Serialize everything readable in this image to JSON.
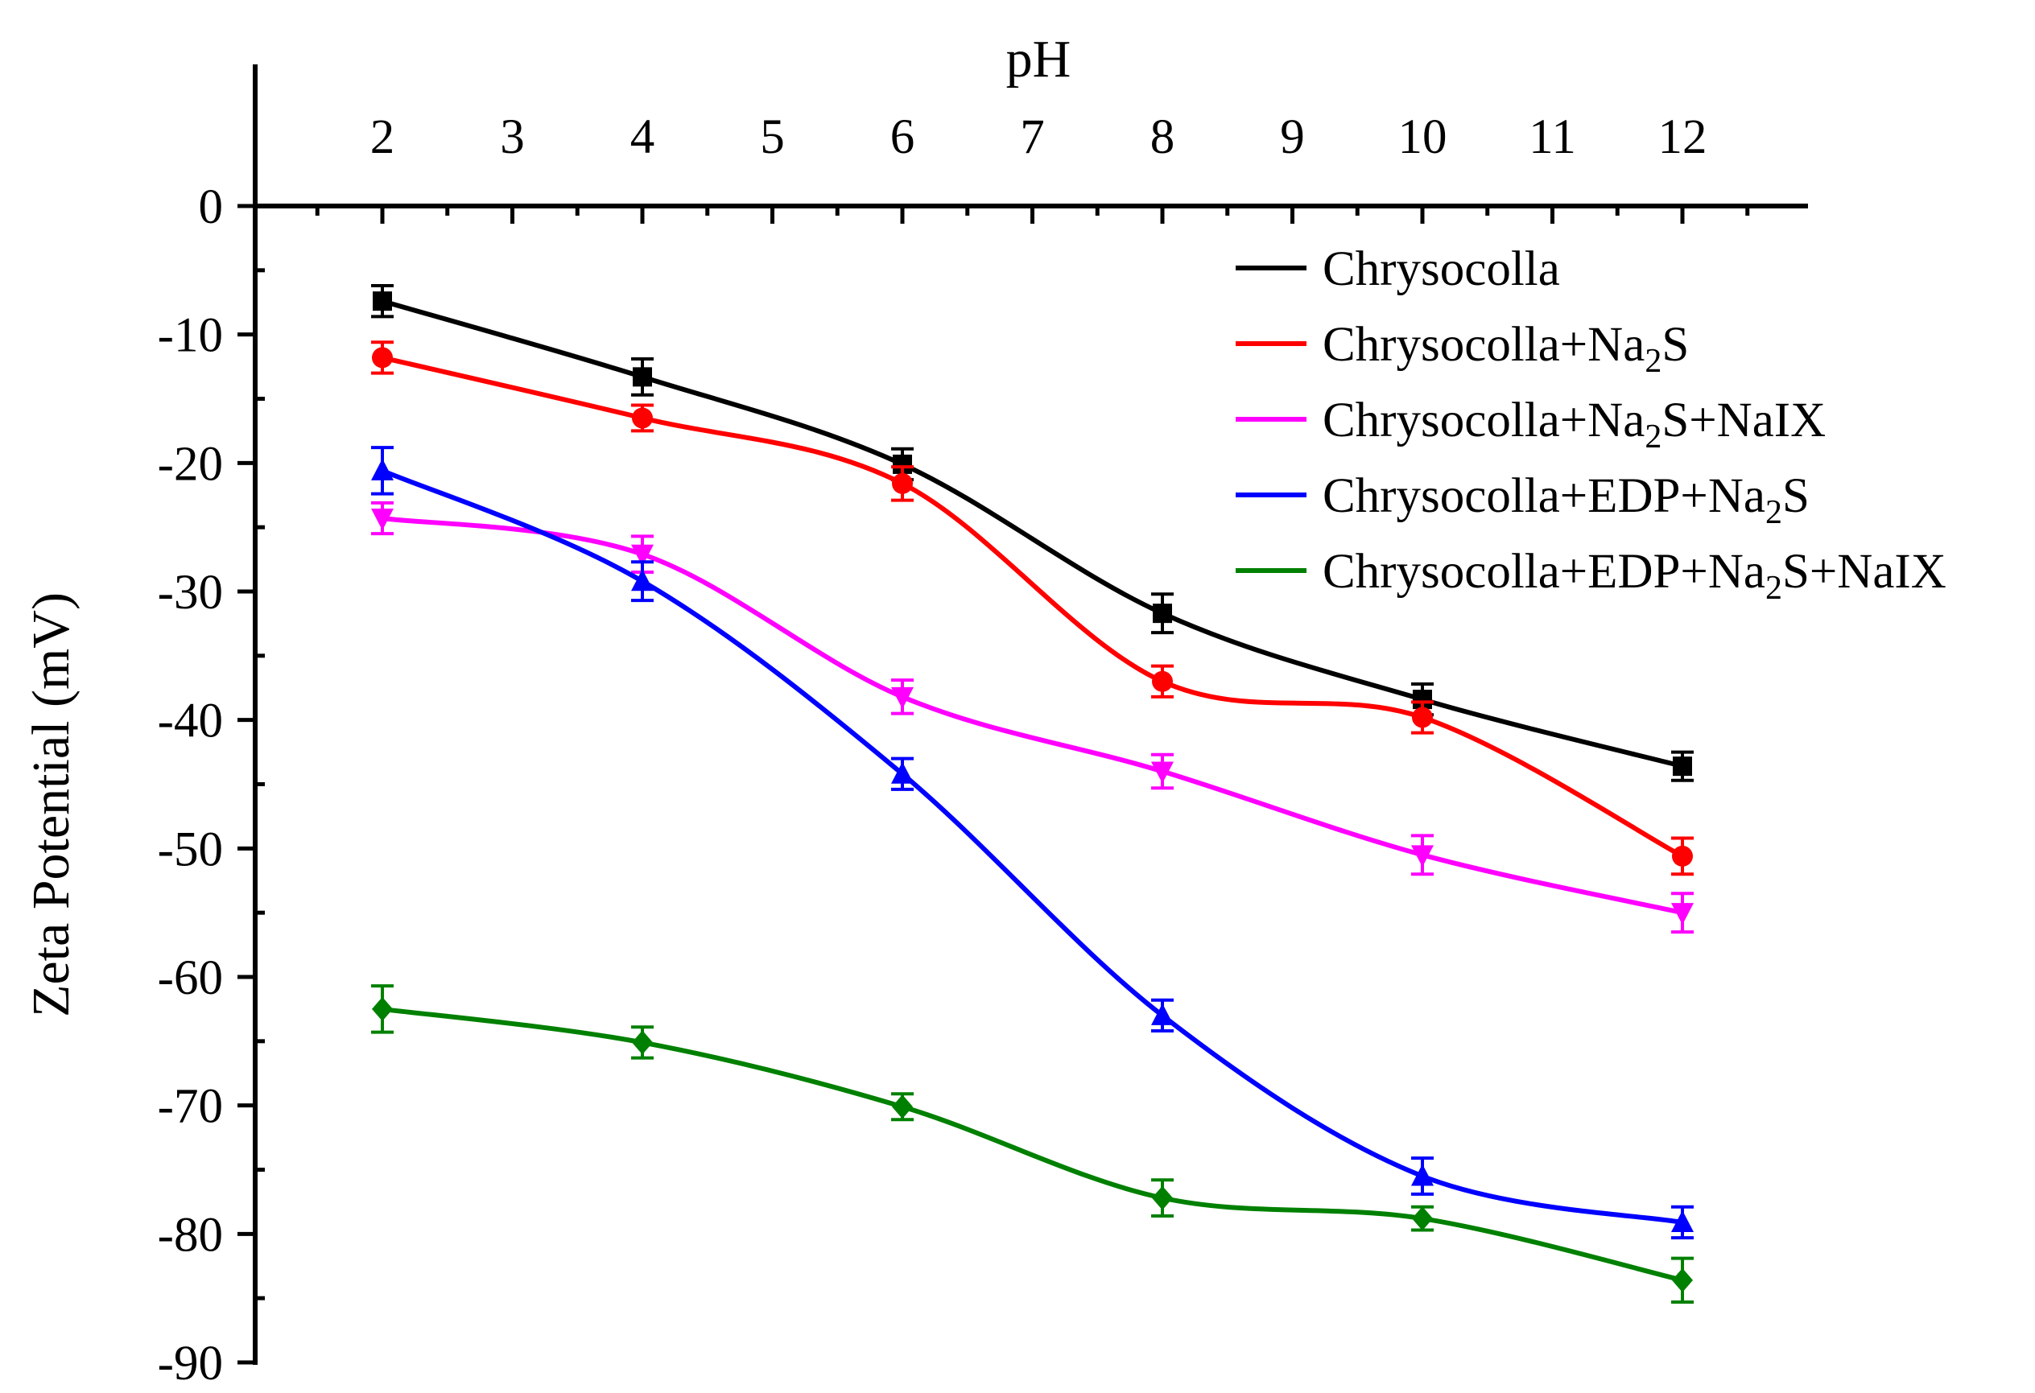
{
  "chart_data": {
    "type": "line",
    "xlabel": "pH",
    "ylabel": "Zeta Potential (mV)",
    "xlim": [
      0,
      14
    ],
    "ylim": [
      -90,
      0
    ],
    "x_ticks": [
      2,
      3,
      4,
      5,
      6,
      7,
      8,
      9,
      10,
      11,
      12
    ],
    "y_ticks": [
      0,
      -10,
      -20,
      -30,
      -40,
      -50,
      -60,
      -70,
      -80,
      -90
    ],
    "x_axis_position": "top",
    "grid": false,
    "legend_position": "top-right",
    "series": [
      {
        "name": "Chrysocolla",
        "name_parts": [
          {
            "t": "Chrysocolla"
          }
        ],
        "color": "#000000",
        "marker": "square",
        "x": [
          2,
          4,
          6,
          8,
          10,
          12
        ],
        "y": [
          -7.4,
          -13.3,
          -20.1,
          -31.7,
          -38.4,
          -43.6
        ],
        "err": [
          1.2,
          1.4,
          1.2,
          1.5,
          1.2,
          1.1
        ]
      },
      {
        "name": "Chrysocolla+Na2S",
        "name_parts": [
          {
            "t": "Chrysocolla+Na"
          },
          {
            "t": "2",
            "sub": true
          },
          {
            "t": "S"
          }
        ],
        "color": "#ff0000",
        "marker": "circle",
        "x": [
          2,
          4,
          6,
          8,
          10,
          12
        ],
        "y": [
          -11.8,
          -16.5,
          -21.6,
          -37.0,
          -39.8,
          -50.6
        ],
        "err": [
          1.2,
          1.0,
          1.3,
          1.2,
          1.2,
          1.4
        ]
      },
      {
        "name": "Chrysocolla+Na2S+NaIX",
        "name_parts": [
          {
            "t": "Chrysocolla+Na"
          },
          {
            "t": "2",
            "sub": true
          },
          {
            "t": "S+NaIX"
          }
        ],
        "color": "#ff00ff",
        "marker": "triangle-down",
        "x": [
          2,
          4,
          6,
          8,
          10,
          12
        ],
        "y": [
          -24.3,
          -27.1,
          -38.2,
          -44.0,
          -50.5,
          -55.0
        ],
        "err": [
          1.2,
          1.4,
          1.3,
          1.3,
          1.5,
          1.5
        ]
      },
      {
        "name": "Chrysocolla+EDP+Na2S",
        "name_parts": [
          {
            "t": "Chrysocolla+EDP+Na"
          },
          {
            "t": "2",
            "sub": true
          },
          {
            "t": "S"
          }
        ],
        "color": "#0000ff",
        "marker": "triangle-up",
        "x": [
          2,
          4,
          6,
          8,
          10,
          12
        ],
        "y": [
          -20.6,
          -29.2,
          -44.2,
          -63.0,
          -75.5,
          -79.1
        ],
        "err": [
          1.8,
          1.5,
          1.2,
          1.2,
          1.4,
          1.2
        ]
      },
      {
        "name": "Chrysocolla+EDP+Na2S+NaIX",
        "name_parts": [
          {
            "t": "Chrysocolla+EDP+Na"
          },
          {
            "t": "2",
            "sub": true
          },
          {
            "t": "S+NaIX"
          }
        ],
        "color": "#008000",
        "marker": "diamond",
        "x": [
          2,
          4,
          6,
          8,
          10,
          12
        ],
        "y": [
          -62.5,
          -65.1,
          -70.1,
          -77.2,
          -78.8,
          -83.6
        ],
        "err": [
          1.8,
          1.2,
          1.0,
          1.4,
          0.9,
          1.7
        ]
      }
    ]
  }
}
